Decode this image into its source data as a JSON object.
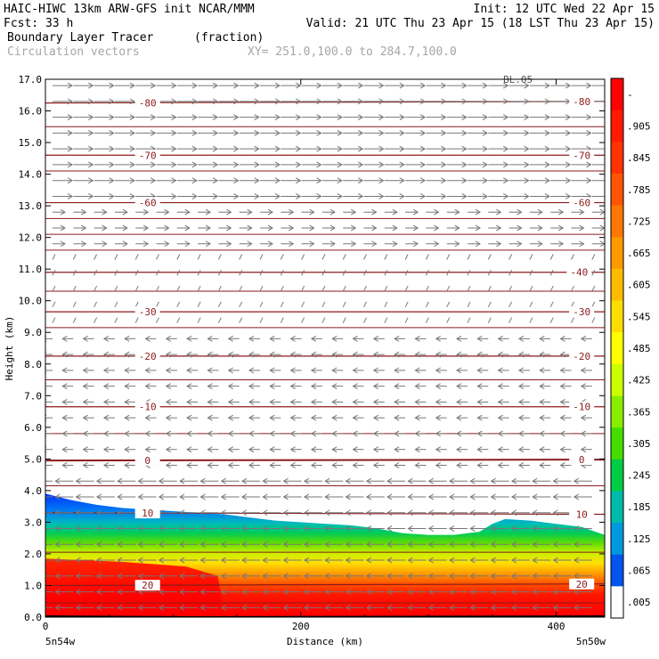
{
  "header": {
    "left1": "HAIC-HIWC 13km ARW-GFS init   NCAR/MMM",
    "right1": "Init: 12 UTC Wed 22 Apr 15",
    "left2": "Fcst:   33 h",
    "right2": "Valid: 21 UTC Thu 23 Apr 15 (18 LST Thu 23 Apr 15)",
    "field_name": "Boundary Layer Tracer",
    "field_units": "(fraction)",
    "vector_name": "Circulation vectors",
    "xsec_coords": "XY= 251.0,100.0 to 284.7,100.0"
  },
  "chart_data": {
    "type": "heatmap",
    "title": "Boundary Layer Tracer",
    "xlabel": "Distance (km)",
    "ylabel": "Height (km)",
    "xlim": [
      0,
      438
    ],
    "ylim": [
      0,
      17
    ],
    "x_ticks": [
      0,
      200,
      400
    ],
    "y_ticks": [
      "0.0",
      "1.0",
      "2.0",
      "3.0",
      "4.0",
      "5.0",
      "6.0",
      "7.0",
      "8.0",
      "9.0",
      "10.0",
      "11.0",
      "12.0",
      "13.0",
      "14.0",
      "15.0",
      "16.0",
      "17.0"
    ],
    "x_end_labels": {
      "left": "5n54w",
      "right": "5n50w"
    },
    "top_right_label": "BL.05",
    "colorbar": {
      "labels": [
        "-",
        ".905",
        ".845",
        ".785",
        ".725",
        ".665",
        ".605",
        ".545",
        ".485",
        ".425",
        ".365",
        ".305",
        ".245",
        ".185",
        ".125",
        ".065",
        ".005"
      ],
      "colors": [
        "#ff0000",
        "#ff1a00",
        "#ff3300",
        "#ff5500",
        "#ff7700",
        "#ff9900",
        "#ffbb00",
        "#ffdd00",
        "#ffff00",
        "#ccff00",
        "#88ee00",
        "#44dd00",
        "#00cc44",
        "#00bbaa",
        "#0099dd",
        "#0055ee",
        "#ffffff"
      ]
    },
    "tracer_top_km": [
      [
        0,
        3.9
      ],
      [
        20,
        3.7
      ],
      [
        40,
        3.55
      ],
      [
        60,
        3.45
      ],
      [
        80,
        3.4
      ],
      [
        100,
        3.35
      ],
      [
        120,
        3.3
      ],
      [
        140,
        3.25
      ],
      [
        160,
        3.15
      ],
      [
        180,
        3.05
      ],
      [
        200,
        3.0
      ],
      [
        220,
        2.95
      ],
      [
        240,
        2.9
      ],
      [
        260,
        2.8
      ],
      [
        280,
        2.65
      ],
      [
        300,
        2.6
      ],
      [
        320,
        2.6
      ],
      [
        340,
        2.7
      ],
      [
        350,
        2.95
      ],
      [
        360,
        3.1
      ],
      [
        380,
        3.05
      ],
      [
        400,
        2.95
      ],
      [
        420,
        2.85
      ],
      [
        438,
        2.6
      ]
    ],
    "temperature_contours": [
      {
        "label": "-80",
        "z_left": 16.25,
        "z_right": 16.3,
        "lx": 80,
        "rx": 420
      },
      {
        "label": "-70",
        "z_left": 14.6,
        "z_right": 14.6,
        "lx": 80,
        "rx": 420
      },
      {
        "label": "-60",
        "z_left": 13.1,
        "z_right": 13.1,
        "lx": 80,
        "rx": 420
      },
      {
        "label": "-40",
        "z_left": 10.9,
        "z_right": 10.9,
        "lx": 418
      },
      {
        "label": "-30",
        "z_left": 9.65,
        "z_right": 9.65,
        "lx": 80,
        "rx": 420
      },
      {
        "label": "-20",
        "z_left": 8.25,
        "z_right": 8.25,
        "lx": 80,
        "rx": 420
      },
      {
        "label": "-10",
        "z_left": 6.65,
        "z_right": 6.65,
        "lx": 80,
        "rx": 420
      },
      {
        "label": "0",
        "z_left": 4.95,
        "z_right": 4.98,
        "lx": 80,
        "rx": 420
      },
      {
        "label": "10",
        "z_left": 3.3,
        "z_right": 3.25,
        "lx": 80,
        "rx": 420
      },
      {
        "label": "20",
        "z_left": 1.0,
        "z_right": 1.05,
        "lx": 80,
        "rx": 420
      }
    ],
    "other_isotherms_km": [
      17.0,
      15.5,
      14.1,
      12.6,
      12.1,
      11.6,
      10.3,
      9.15,
      7.5,
      5.8,
      4.15,
      2.05,
      0.45
    ]
  }
}
